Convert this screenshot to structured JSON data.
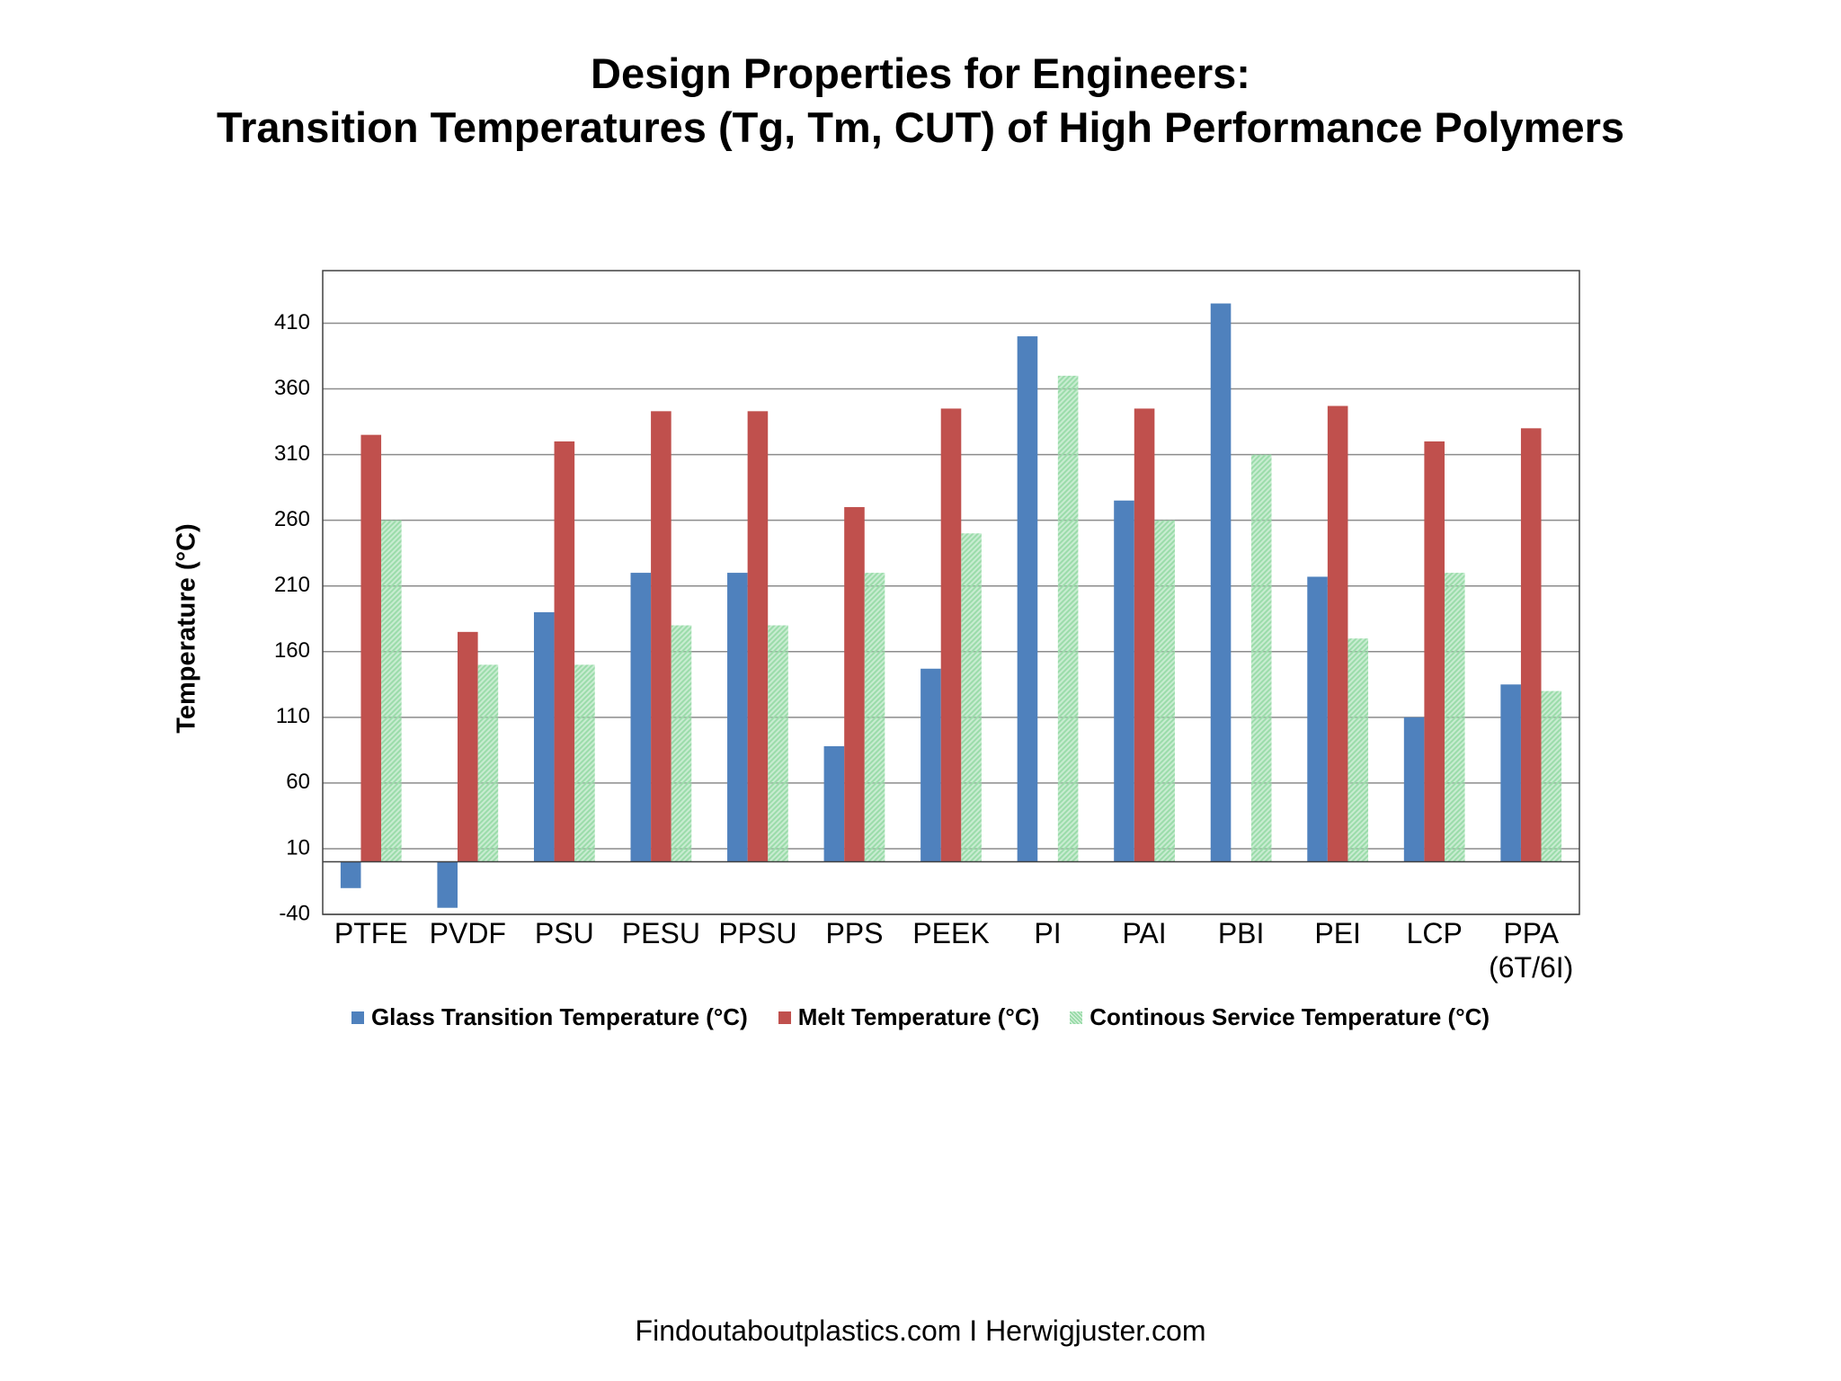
{
  "chart_data": {
    "type": "bar",
    "title": [
      "Design Properties for Engineers:",
      "Transition Temperatures (Tg, Tm, CUT) of High Performance Polymers"
    ],
    "y_label": "Temperature (°C)",
    "categories": [
      "PTFE",
      "PVDF",
      "PSU",
      "PESU",
      "PPSU",
      "PPS",
      "PEEK",
      "PI",
      "PAI",
      "PBI",
      "PEI",
      "LCP",
      "PPA (6T/6I)"
    ],
    "series": [
      {
        "name": "Glass Transition Temperature (°C)",
        "color": "#4f81bd",
        "values": [
          -20,
          -35,
          190,
          220,
          220,
          88,
          147,
          400,
          275,
          425,
          217,
          110,
          135
        ]
      },
      {
        "name": "Melt Temperature (°C)",
        "color": "#c0504d",
        "values": [
          325,
          175,
          320,
          343,
          343,
          270,
          345,
          null,
          345,
          null,
          347,
          320,
          330
        ]
      },
      {
        "name": "Continous Service Temperature (°C)",
        "color": "#9bdcaa",
        "hatched": true,
        "values": [
          260,
          150,
          150,
          180,
          180,
          220,
          250,
          370,
          260,
          310,
          170,
          220,
          130
        ]
      }
    ],
    "ylim": [
      -40,
      450
    ],
    "yticks": [
      -40,
      10,
      60,
      110,
      160,
      210,
      260,
      310,
      360,
      410
    ],
    "grid": true,
    "legend": "bottom",
    "footer": "Findoutaboutplastics.com I Herwigjuster.com"
  }
}
